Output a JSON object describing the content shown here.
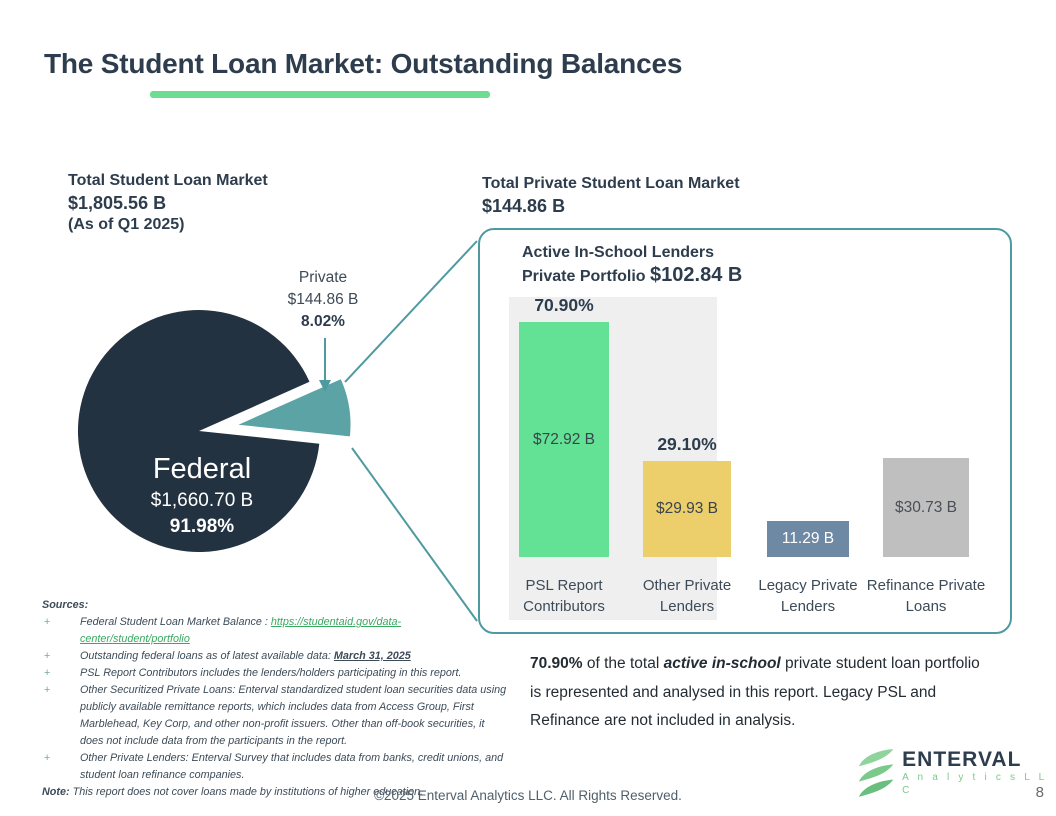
{
  "slide": {
    "title": "The Student Loan Market: Outstanding Balances",
    "footer": "©2025 Enterval Analytics LLC. All Rights Reserved.",
    "page_number": "8"
  },
  "colors": {
    "accent_green": "#6EDD92",
    "accent_teal": "#4F9AA0",
    "navy": "#2E3D4D",
    "link_green": "#3AA860",
    "logo_green": "#7CC98C",
    "panel_gray": "#EFEFEF"
  },
  "left": {
    "header_title": "Total Student Loan Market",
    "header_value": "$1,805.56 B",
    "header_asof": "(As of Q1 2025)",
    "private_label": "Private",
    "private_value": "$144.86 B",
    "private_pct": "8.02%",
    "federal_label": "Federal",
    "federal_value": "$1,660.70 B",
    "federal_pct": "91.98%"
  },
  "right": {
    "header_title": "Total Private Student Loan Market",
    "header_value": "$144.86 B",
    "box_title_line1": "Active In-School Lenders",
    "box_title_line2": "Private Portfolio ",
    "box_title_value": "$102.84 B"
  },
  "caption": {
    "pct": "70.90%",
    "t1": " of the total ",
    "emph": "active in-school",
    "t2": " private student loan portfolio is represented and analysed in this report. Legacy PSL and Refinance are not included in analysis."
  },
  "sources": {
    "heading": "Sources:",
    "bullet_char": "+",
    "item1_text": "Federal Student Loan Market Balance : ",
    "item1_link": "https://studentaid.gov/data-center/student/portfolio",
    "item2_text": "Outstanding federal loans as of latest available data: ",
    "item2_date": "March 31, 2025",
    "item3": "PSL Report Contributors includes the lenders/holders participating in this report.",
    "item4": "Other Securitized Private Loans: Enterval standardized student loan securities data using publicly available remittance reports, which includes data from Access Group, First Marblehead, Key Corp, and other non-profit issuers. Other than off-book securities, it does not include data from the participants in the report.",
    "item5": "Other Private Lenders: Enterval Survey that includes data from banks, credit unions, and student loan refinance companies.",
    "note_label": "Note:",
    "note_text": " This report does not cover loans made by institutions of higher education."
  },
  "logo": {
    "name": "ENTERVAL",
    "subtitle": "A n a l y t i c s   L L C"
  },
  "chart_data": [
    {
      "type": "pie",
      "title": "Total Student Loan Market",
      "total_label": "$1,805.56 B",
      "as_of": "Q1 2025",
      "slices": [
        {
          "label": "Federal",
          "value_billions": 1660.7,
          "pct": 91.98,
          "color": "#233240"
        },
        {
          "label": "Private",
          "value_billions": 144.86,
          "pct": 8.02,
          "color": "#5CA3A6"
        }
      ],
      "layout": "private slice exploded toward right, connected to bar-chart box by teal lines"
    },
    {
      "type": "bar",
      "title": "Active In-School Lenders Private Portfolio",
      "total_label": "$102.84 B",
      "categories": [
        "PSL Report Contributors",
        "Other Private Lenders",
        "Legacy Private Lenders",
        "Refinance Private Loans"
      ],
      "values": [
        72.92,
        29.93,
        11.29,
        30.73
      ],
      "value_labels": [
        "$72.92 B",
        "$29.93 B",
        "11.29 B",
        "$30.73 B"
      ],
      "pct_labels": [
        "70.90%",
        "29.10%"
      ],
      "colors": [
        "#63E194",
        "#ECCF6B",
        "#6E89A4",
        "#BFBFBF"
      ],
      "ylim": [
        0,
        100
      ],
      "grid": false,
      "legend": false,
      "note": "first two bars highlighted on gray panel"
    }
  ]
}
